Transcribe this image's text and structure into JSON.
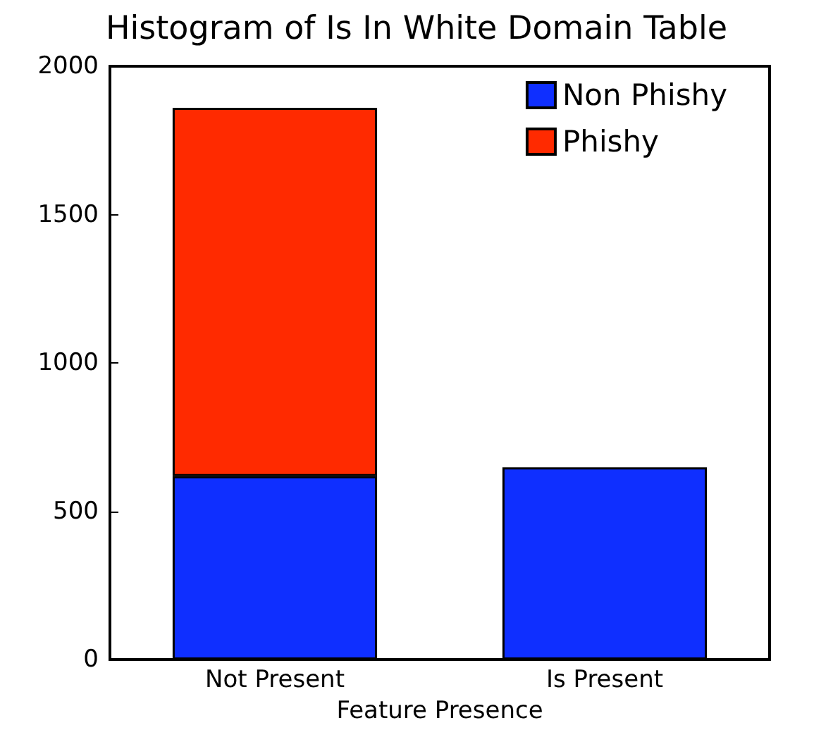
{
  "chart_data": {
    "type": "bar",
    "title": "Histogram of Is In White Domain Table",
    "xlabel": "Feature Presence",
    "categories": [
      "Not Present",
      "Is Present"
    ],
    "series": [
      {
        "name": "Non Phishy",
        "color": "#0f2fff",
        "values": [
          618,
          648
        ]
      },
      {
        "name": "Phishy",
        "color": "#ff2a00",
        "values": [
          1242,
          null
        ]
      }
    ],
    "stacked": true,
    "ylim": [
      0,
      2000
    ],
    "yticks": [
      0,
      500,
      1000,
      1500,
      2000
    ],
    "grid": false,
    "legend": "top right"
  }
}
